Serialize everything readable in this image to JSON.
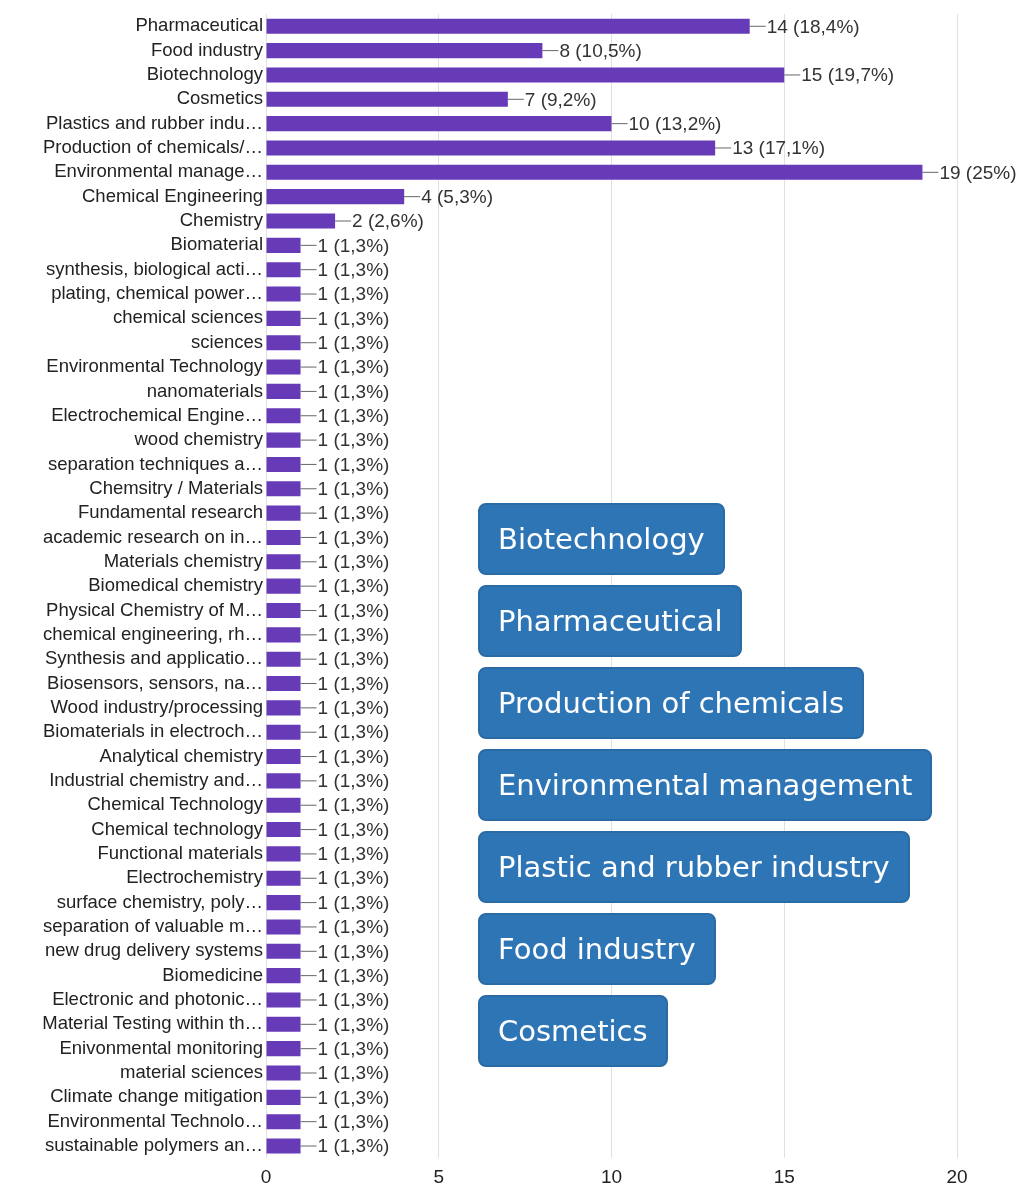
{
  "chart_data": {
    "type": "bar",
    "orientation": "horizontal",
    "categories": [
      "Pharmaceutical",
      "Food industry",
      "Biotechnology",
      "Cosmetics",
      "Plastics and rubber indu…",
      "Production of chemicals/…",
      "Environmental manage…",
      "Chemical Engineering",
      "Chemistry",
      "Biomaterial",
      "synthesis, biological acti…",
      "plating, chemical power…",
      "chemical sciences",
      "sciences",
      "Environmental Technology",
      "nanomaterials",
      "Electrochemical Engine…",
      "wood chemistry",
      "separation techniques a…",
      "Chemsitry / Materials",
      "Fundamental research",
      "academic research on in…",
      "Materials chemistry",
      "Biomedical chemistry",
      "Physical Chemistry of M…",
      "chemical engineering, rh…",
      "Synthesis and applicatio…",
      "Biosensors, sensors, na…",
      "Wood industry/processing",
      "Biomaterials in electroch…",
      "Analytical chemistry",
      "Industrial chemistry and…",
      "Chemical Technology",
      "Chemical technology",
      "Functional materials",
      "Electrochemistry",
      "surface chemistry, poly…",
      "separation of valuable m…",
      "new drug delivery systems",
      "Biomedicine",
      "Electronic and photonic…",
      "Material Testing within th…",
      "Enivonmental monitoring",
      "material sciences",
      "Climate change mitigation",
      "Environmental Technolo…",
      "sustainable polymers an…"
    ],
    "values": [
      14,
      8,
      15,
      7,
      10,
      13,
      19,
      4,
      2,
      1,
      1,
      1,
      1,
      1,
      1,
      1,
      1,
      1,
      1,
      1,
      1,
      1,
      1,
      1,
      1,
      1,
      1,
      1,
      1,
      1,
      1,
      1,
      1,
      1,
      1,
      1,
      1,
      1,
      1,
      1,
      1,
      1,
      1,
      1,
      1,
      1,
      1
    ],
    "value_labels": [
      "14 (18,4%)",
      "8 (10,5%)",
      "15 (19,7%)",
      "7 (9,2%)",
      "10 (13,2%)",
      "13 (17,1%)",
      "19 (25%)",
      "4 (5,3%)",
      "2 (2,6%)",
      "1 (1,3%)",
      "1 (1,3%)",
      "1 (1,3%)",
      "1 (1,3%)",
      "1 (1,3%)",
      "1 (1,3%)",
      "1 (1,3%)",
      "1 (1,3%)",
      "1 (1,3%)",
      "1 (1,3%)",
      "1 (1,3%)",
      "1 (1,3%)",
      "1 (1,3%)",
      "1 (1,3%)",
      "1 (1,3%)",
      "1 (1,3%)",
      "1 (1,3%)",
      "1 (1,3%)",
      "1 (1,3%)",
      "1 (1,3%)",
      "1 (1,3%)",
      "1 (1,3%)",
      "1 (1,3%)",
      "1 (1,3%)",
      "1 (1,3%)",
      "1 (1,3%)",
      "1 (1,3%)",
      "1 (1,3%)",
      "1 (1,3%)",
      "1 (1,3%)",
      "1 (1,3%)",
      "1 (1,3%)",
      "1 (1,3%)",
      "1 (1,3%)",
      "1 (1,3%)",
      "1 (1,3%)",
      "1 (1,3%)",
      "1 (1,3%)"
    ],
    "color": "#673ab7",
    "xlim": [
      0,
      20
    ],
    "xticks": [
      0,
      5,
      10,
      15,
      20
    ],
    "grid": "x",
    "annotations": [
      "Biotechnology",
      "Pharmaceutical",
      "Production of chemicals",
      "Environmental management",
      "Plastic and rubber industry",
      "Food industry",
      "Cosmetics"
    ]
  }
}
